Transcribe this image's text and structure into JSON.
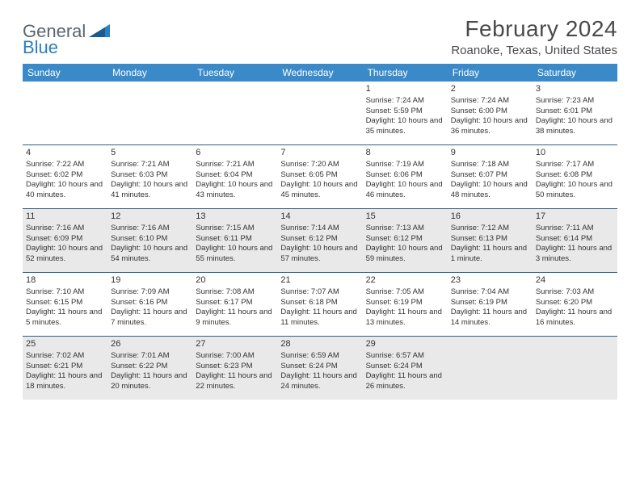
{
  "logo": {
    "word1": "General",
    "word2": "Blue"
  },
  "title": "February 2024",
  "location": "Roanoke, Texas, United States",
  "colors": {
    "header_bg": "#3a8ac9",
    "header_text": "#ffffff",
    "row_border": "#2b5f8a",
    "shade_bg": "#e9e9e9",
    "text": "#333333",
    "logo_gray": "#5a6570",
    "logo_blue": "#2b7fc3"
  },
  "weekdays": [
    "Sunday",
    "Monday",
    "Tuesday",
    "Wednesday",
    "Thursday",
    "Friday",
    "Saturday"
  ],
  "weeks": [
    [
      {},
      {},
      {},
      {},
      {
        "day": "1",
        "sunrise": "Sunrise: 7:24 AM",
        "sunset": "Sunset: 5:59 PM",
        "daylight": "Daylight: 10 hours and 35 minutes."
      },
      {
        "day": "2",
        "sunrise": "Sunrise: 7:24 AM",
        "sunset": "Sunset: 6:00 PM",
        "daylight": "Daylight: 10 hours and 36 minutes."
      },
      {
        "day": "3",
        "sunrise": "Sunrise: 7:23 AM",
        "sunset": "Sunset: 6:01 PM",
        "daylight": "Daylight: 10 hours and 38 minutes."
      }
    ],
    [
      {
        "day": "4",
        "sunrise": "Sunrise: 7:22 AM",
        "sunset": "Sunset: 6:02 PM",
        "daylight": "Daylight: 10 hours and 40 minutes."
      },
      {
        "day": "5",
        "sunrise": "Sunrise: 7:21 AM",
        "sunset": "Sunset: 6:03 PM",
        "daylight": "Daylight: 10 hours and 41 minutes."
      },
      {
        "day": "6",
        "sunrise": "Sunrise: 7:21 AM",
        "sunset": "Sunset: 6:04 PM",
        "daylight": "Daylight: 10 hours and 43 minutes."
      },
      {
        "day": "7",
        "sunrise": "Sunrise: 7:20 AM",
        "sunset": "Sunset: 6:05 PM",
        "daylight": "Daylight: 10 hours and 45 minutes."
      },
      {
        "day": "8",
        "sunrise": "Sunrise: 7:19 AM",
        "sunset": "Sunset: 6:06 PM",
        "daylight": "Daylight: 10 hours and 46 minutes."
      },
      {
        "day": "9",
        "sunrise": "Sunrise: 7:18 AM",
        "sunset": "Sunset: 6:07 PM",
        "daylight": "Daylight: 10 hours and 48 minutes."
      },
      {
        "day": "10",
        "sunrise": "Sunrise: 7:17 AM",
        "sunset": "Sunset: 6:08 PM",
        "daylight": "Daylight: 10 hours and 50 minutes."
      }
    ],
    [
      {
        "day": "11",
        "shade": true,
        "sunrise": "Sunrise: 7:16 AM",
        "sunset": "Sunset: 6:09 PM",
        "daylight": "Daylight: 10 hours and 52 minutes."
      },
      {
        "day": "12",
        "shade": true,
        "sunrise": "Sunrise: 7:16 AM",
        "sunset": "Sunset: 6:10 PM",
        "daylight": "Daylight: 10 hours and 54 minutes."
      },
      {
        "day": "13",
        "shade": true,
        "sunrise": "Sunrise: 7:15 AM",
        "sunset": "Sunset: 6:11 PM",
        "daylight": "Daylight: 10 hours and 55 minutes."
      },
      {
        "day": "14",
        "shade": true,
        "sunrise": "Sunrise: 7:14 AM",
        "sunset": "Sunset: 6:12 PM",
        "daylight": "Daylight: 10 hours and 57 minutes."
      },
      {
        "day": "15",
        "shade": true,
        "sunrise": "Sunrise: 7:13 AM",
        "sunset": "Sunset: 6:12 PM",
        "daylight": "Daylight: 10 hours and 59 minutes."
      },
      {
        "day": "16",
        "shade": true,
        "sunrise": "Sunrise: 7:12 AM",
        "sunset": "Sunset: 6:13 PM",
        "daylight": "Daylight: 11 hours and 1 minute."
      },
      {
        "day": "17",
        "shade": true,
        "sunrise": "Sunrise: 7:11 AM",
        "sunset": "Sunset: 6:14 PM",
        "daylight": "Daylight: 11 hours and 3 minutes."
      }
    ],
    [
      {
        "day": "18",
        "sunrise": "Sunrise: 7:10 AM",
        "sunset": "Sunset: 6:15 PM",
        "daylight": "Daylight: 11 hours and 5 minutes."
      },
      {
        "day": "19",
        "sunrise": "Sunrise: 7:09 AM",
        "sunset": "Sunset: 6:16 PM",
        "daylight": "Daylight: 11 hours and 7 minutes."
      },
      {
        "day": "20",
        "sunrise": "Sunrise: 7:08 AM",
        "sunset": "Sunset: 6:17 PM",
        "daylight": "Daylight: 11 hours and 9 minutes."
      },
      {
        "day": "21",
        "sunrise": "Sunrise: 7:07 AM",
        "sunset": "Sunset: 6:18 PM",
        "daylight": "Daylight: 11 hours and 11 minutes."
      },
      {
        "day": "22",
        "sunrise": "Sunrise: 7:05 AM",
        "sunset": "Sunset: 6:19 PM",
        "daylight": "Daylight: 11 hours and 13 minutes."
      },
      {
        "day": "23",
        "sunrise": "Sunrise: 7:04 AM",
        "sunset": "Sunset: 6:19 PM",
        "daylight": "Daylight: 11 hours and 14 minutes."
      },
      {
        "day": "24",
        "sunrise": "Sunrise: 7:03 AM",
        "sunset": "Sunset: 6:20 PM",
        "daylight": "Daylight: 11 hours and 16 minutes."
      }
    ],
    [
      {
        "day": "25",
        "shade": true,
        "sunrise": "Sunrise: 7:02 AM",
        "sunset": "Sunset: 6:21 PM",
        "daylight": "Daylight: 11 hours and 18 minutes."
      },
      {
        "day": "26",
        "shade": true,
        "sunrise": "Sunrise: 7:01 AM",
        "sunset": "Sunset: 6:22 PM",
        "daylight": "Daylight: 11 hours and 20 minutes."
      },
      {
        "day": "27",
        "shade": true,
        "sunrise": "Sunrise: 7:00 AM",
        "sunset": "Sunset: 6:23 PM",
        "daylight": "Daylight: 11 hours and 22 minutes."
      },
      {
        "day": "28",
        "shade": true,
        "sunrise": "Sunrise: 6:59 AM",
        "sunset": "Sunset: 6:24 PM",
        "daylight": "Daylight: 11 hours and 24 minutes."
      },
      {
        "day": "29",
        "shade": true,
        "sunrise": "Sunrise: 6:57 AM",
        "sunset": "Sunset: 6:24 PM",
        "daylight": "Daylight: 11 hours and 26 minutes."
      },
      {
        "shade": true
      },
      {
        "shade": true
      }
    ]
  ]
}
